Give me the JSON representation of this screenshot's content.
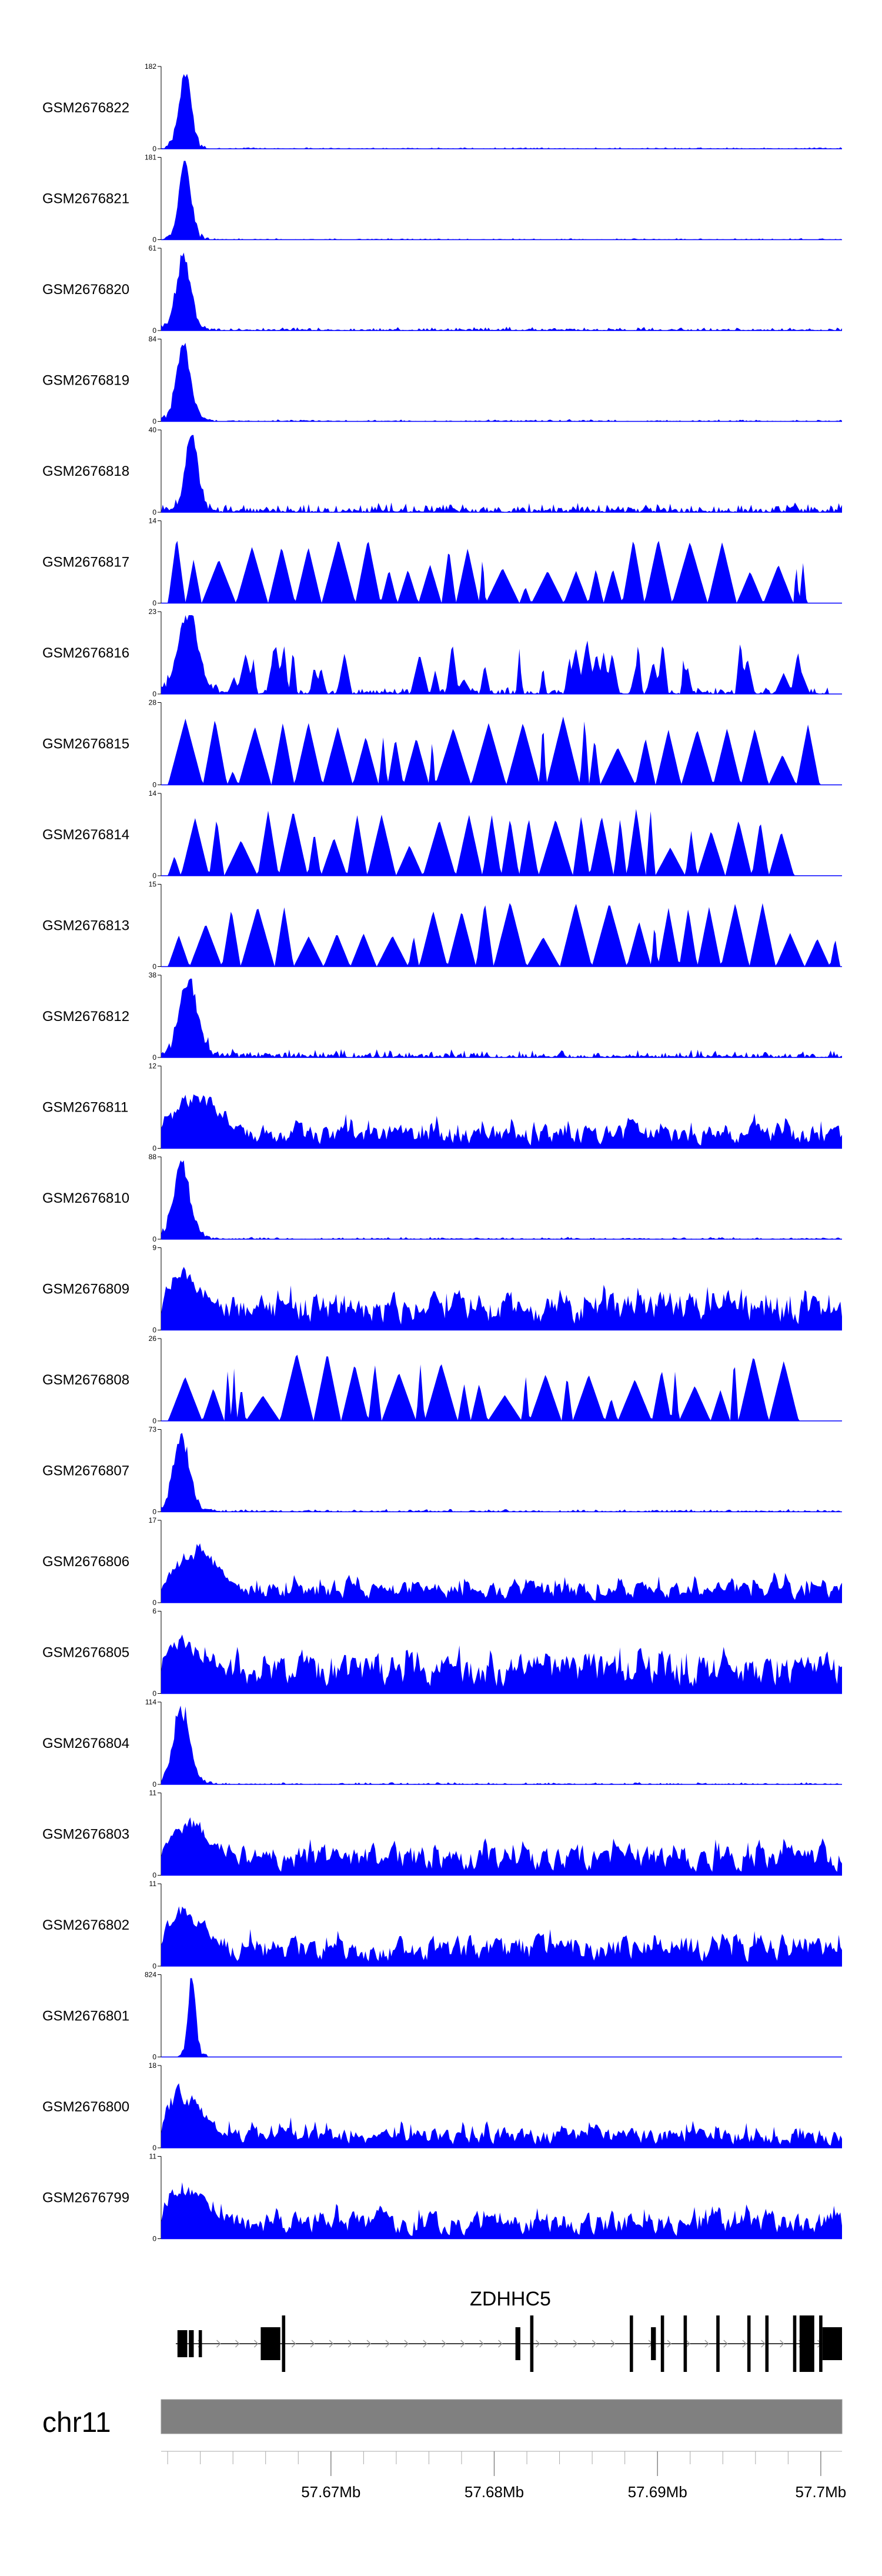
{
  "chart_data": {
    "type": "area",
    "title": "",
    "colors": {
      "signal": "#0000ff",
      "axis": "#000000",
      "gene": "#000000",
      "ideogram": "#808080",
      "ideogram_border": "#999999"
    },
    "tracks": [
      {
        "name": "GSM2676822",
        "ymax": "182",
        "ymin": "0",
        "profile": "peak",
        "peak_pos": 0.035,
        "peak_width": 0.012,
        "background": 0.02
      },
      {
        "name": "GSM2676821",
        "ymax": "181",
        "ymin": "0",
        "profile": "peak",
        "peak_pos": 0.035,
        "peak_width": 0.012,
        "background": 0.02
      },
      {
        "name": "GSM2676820",
        "ymax": "61",
        "ymin": "0",
        "profile": "peak",
        "peak_pos": 0.033,
        "peak_width": 0.014,
        "background": 0.05
      },
      {
        "name": "GSM2676819",
        "ymax": "84",
        "ymin": "0",
        "profile": "peak",
        "peak_pos": 0.033,
        "peak_width": 0.014,
        "background": 0.03
      },
      {
        "name": "GSM2676818",
        "ymax": "40",
        "ymin": "0",
        "profile": "peak",
        "peak_pos": 0.045,
        "peak_width": 0.013,
        "background": 0.14
      },
      {
        "name": "GSM2676817",
        "ymax": "14",
        "ymin": "0",
        "profile": "sparse",
        "end": 0.95
      },
      {
        "name": "GSM2676816",
        "ymax": "23",
        "ymin": "0",
        "profile": "mixed",
        "peak_pos": 0.04,
        "peak_width": 0.02,
        "end": 0.98
      },
      {
        "name": "GSM2676815",
        "ymax": "28",
        "ymin": "0",
        "profile": "sparse",
        "end": 1.0
      },
      {
        "name": "GSM2676814",
        "ymax": "14",
        "ymin": "0",
        "profile": "sparse",
        "end": 0.95
      },
      {
        "name": "GSM2676813",
        "ymax": "15",
        "ymin": "0",
        "profile": "sparse",
        "end": 1.0
      },
      {
        "name": "GSM2676812",
        "ymax": "38",
        "ymin": "0",
        "profile": "peak",
        "peak_pos": 0.04,
        "peak_width": 0.018,
        "background": 0.12
      },
      {
        "name": "GSM2676811",
        "ymax": "12",
        "ymin": "0",
        "profile": "dense",
        "peak_pos": 0.05,
        "background": 0.35
      },
      {
        "name": "GSM2676810",
        "ymax": "88",
        "ymin": "0",
        "profile": "peak",
        "peak_pos": 0.03,
        "peak_width": 0.016,
        "background": 0.03
      },
      {
        "name": "GSM2676809",
        "ymax": "9",
        "ymin": "0",
        "profile": "dense",
        "peak_pos": 0.03,
        "background": 0.55
      },
      {
        "name": "GSM2676808",
        "ymax": "26",
        "ymin": "0",
        "profile": "sparse",
        "end": 0.95
      },
      {
        "name": "GSM2676807",
        "ymax": "73",
        "ymin": "0",
        "profile": "peak",
        "peak_pos": 0.03,
        "peak_width": 0.016,
        "background": 0.04
      },
      {
        "name": "GSM2676806",
        "ymax": "17",
        "ymin": "0",
        "profile": "dense",
        "peak_pos": 0.05,
        "background": 0.3
      },
      {
        "name": "GSM2676805",
        "ymax": "6",
        "ymin": "0",
        "profile": "dense",
        "peak_pos": 0.03,
        "background": 0.6
      },
      {
        "name": "GSM2676804",
        "ymax": "114",
        "ymin": "0",
        "profile": "peak",
        "peak_pos": 0.03,
        "peak_width": 0.016,
        "background": 0.03
      },
      {
        "name": "GSM2676803",
        "ymax": "11",
        "ymin": "0",
        "profile": "dense",
        "peak_pos": 0.04,
        "background": 0.45
      },
      {
        "name": "GSM2676802",
        "ymax": "11",
        "ymin": "0",
        "profile": "dense",
        "peak_pos": 0.03,
        "background": 0.45
      },
      {
        "name": "GSM2676801",
        "ymax": "824",
        "ymin": "0",
        "profile": "peak",
        "peak_pos": 0.045,
        "peak_width": 0.008,
        "background": 0.004,
        "end": 0.98
      },
      {
        "name": "GSM2676800",
        "ymax": "18",
        "ymin": "0",
        "profile": "dense",
        "peak_pos": 0.03,
        "background": 0.3
      },
      {
        "name": "GSM2676799",
        "ymax": "11",
        "ymin": "0",
        "profile": "dense",
        "peak_pos": 0.03,
        "background": 0.4
      }
    ],
    "gene": {
      "name": "ZDHHC5",
      "strand": "+",
      "start": 57.6605,
      "end": 57.7001,
      "exons": [
        {
          "start": 57.6606,
          "end": 57.6612,
          "type": "utr"
        },
        {
          "start": 57.6613,
          "end": 57.6616,
          "type": "utr"
        },
        {
          "start": 57.6619,
          "end": 57.6621,
          "type": "utr"
        },
        {
          "start": 57.6657,
          "end": 57.6669,
          "type": "cds"
        },
        {
          "start": 57.667,
          "end": 57.6672,
          "type": "tick"
        },
        {
          "start": 57.6813,
          "end": 57.6816,
          "type": "cds"
        },
        {
          "start": 57.6822,
          "end": 57.6824,
          "type": "tick"
        },
        {
          "start": 57.6883,
          "end": 57.6885,
          "type": "tick"
        },
        {
          "start": 57.6896,
          "end": 57.6899,
          "type": "cds"
        },
        {
          "start": 57.6902,
          "end": 57.6904,
          "type": "tick"
        },
        {
          "start": 57.6916,
          "end": 57.6918,
          "type": "tick"
        },
        {
          "start": 57.6936,
          "end": 57.6938,
          "type": "tick"
        },
        {
          "start": 57.6955,
          "end": 57.6957,
          "type": "tick"
        },
        {
          "start": 57.6966,
          "end": 57.6968,
          "type": "tick"
        },
        {
          "start": 57.6983,
          "end": 57.6985,
          "type": "tick"
        },
        {
          "start": 57.6987,
          "end": 57.6996,
          "type": "cds"
        },
        {
          "start": 57.6999,
          "end": 57.7001,
          "type": "tick"
        },
        {
          "start": 57.7001,
          "end": 57.7013,
          "type": "cds"
        }
      ]
    },
    "chromosome": {
      "label": "chr11"
    },
    "x_axis": {
      "range": [
        57.6596,
        57.7013
      ],
      "major_ticks": [
        57.67,
        57.68,
        57.69,
        57.7
      ],
      "tick_labels": [
        "57.67Mb",
        "57.68Mb",
        "57.69Mb",
        "57.7Mb"
      ],
      "minor_step": 0.002
    }
  }
}
